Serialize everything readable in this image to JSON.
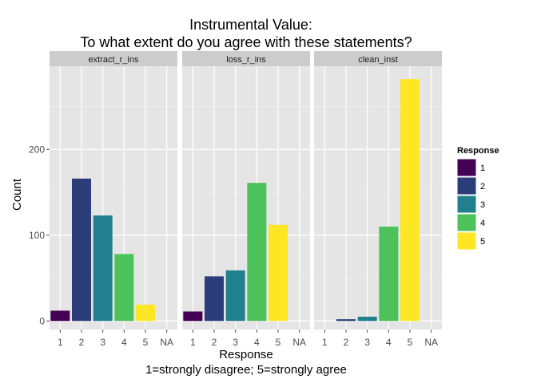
{
  "chart_data": {
    "type": "bar",
    "title_line1": "Instrumental Value:",
    "title_line2": "To what extent do you agree with these statements?",
    "xlabel_line1": "Response",
    "xlabel_line2": "1=strongly disagree; 5=strongly agree",
    "ylabel": "Count",
    "categories": [
      "1",
      "2",
      "3",
      "4",
      "5",
      "NA"
    ],
    "yticks": [
      0,
      100,
      200
    ],
    "ylim": [
      -10,
      297
    ],
    "grid": true,
    "legend": {
      "title": "Response",
      "placement": "right",
      "entries": [
        "1",
        "2",
        "3",
        "4",
        "5"
      ]
    },
    "colors": {
      "1": "#440154",
      "2": "#2c3e7a",
      "3": "#21808d",
      "4": "#4ec25a",
      "5": "#fde725"
    },
    "panel_bg": "#e5e5e5",
    "strip_bg": "#cccccc",
    "facets": [
      {
        "name": "extract_r_ins",
        "values": [
          12,
          166,
          123,
          78,
          19,
          0
        ]
      },
      {
        "name": "loss_r_ins",
        "values": [
          11,
          52,
          59,
          161,
          112,
          0
        ]
      },
      {
        "name": "clean_inst",
        "values": [
          0,
          2,
          5,
          110,
          282,
          0
        ]
      }
    ]
  }
}
